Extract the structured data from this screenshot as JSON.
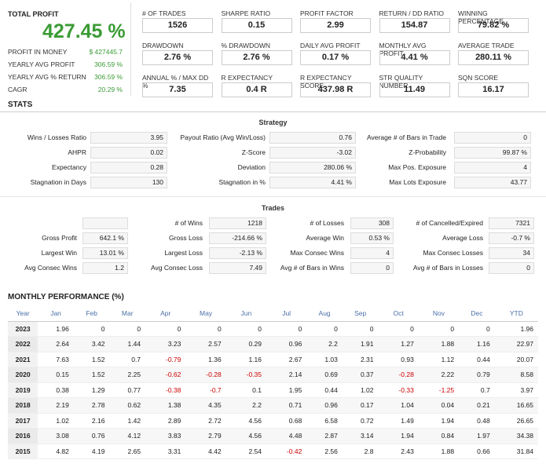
{
  "summary": {
    "total_profit_label": "TOTAL PROFIT",
    "total_profit_value": "427.45 %",
    "left_rows": [
      {
        "label": "PROFIT IN MONEY",
        "value": "$ 427445.7"
      },
      {
        "label": "YEARLY AVG PROFIT",
        "value": "306.59 %"
      },
      {
        "label": "YEARLY AVG % RETURN",
        "value": "306.59 %"
      },
      {
        "label": "CAGR",
        "value": "20.29 %"
      }
    ],
    "metrics": [
      {
        "label": "# OF TRADES",
        "value": "1526"
      },
      {
        "label": "SHARPE RATIO",
        "value": "0.15"
      },
      {
        "label": "PROFIT FACTOR",
        "value": "2.99"
      },
      {
        "label": "RETURN / DD RATIO",
        "value": "154.87"
      },
      {
        "label": "WINNING PERCENTAGE",
        "value": "79.82 %"
      },
      {
        "label": "DRAWDOWN",
        "value": "2.76 %"
      },
      {
        "label": "% DRAWDOWN",
        "value": "2.76 %"
      },
      {
        "label": "DAILY AVG PROFIT",
        "value": "0.17 %"
      },
      {
        "label": "MONTHLY AVG PROFIT",
        "value": "4.41 %"
      },
      {
        "label": "AVERAGE TRADE",
        "value": "280.11 %"
      },
      {
        "label": "ANNUAL % / MAX DD %",
        "value": "7.35"
      },
      {
        "label": "R EXPECTANCY",
        "value": "0.4 R"
      },
      {
        "label": "R EXPECTANCY SCORE",
        "value": "437.98 R"
      },
      {
        "label": "STR QUALITY NUMBER",
        "value": "11.49"
      },
      {
        "label": "SQN SCORE",
        "value": "16.17"
      }
    ]
  },
  "stats": {
    "title": "STATS",
    "strategy_title": "Strategy",
    "strategy": [
      [
        {
          "label": "Wins / Losses Ratio",
          "value": "3.95"
        },
        {
          "label": "Payout Ratio (Avg Win/Loss)",
          "value": "0.76"
        },
        {
          "label": "Average # of Bars in Trade",
          "value": "0"
        }
      ],
      [
        {
          "label": "AHPR",
          "value": "0.02"
        },
        {
          "label": "Z-Score",
          "value": "-3.02"
        },
        {
          "label": "Z-Probability",
          "value": "99.87 %"
        }
      ],
      [
        {
          "label": "Expectancy",
          "value": "0.28"
        },
        {
          "label": "Deviation",
          "value": "280.06 %"
        },
        {
          "label": "Max Pos. Exposure",
          "value": "4"
        }
      ],
      [
        {
          "label": "Stagnation in Days",
          "value": "130"
        },
        {
          "label": "Stagnation in %",
          "value": "4.41 %"
        },
        {
          "label": "Max Lots Exposure",
          "value": "43.77"
        }
      ]
    ],
    "trades_title": "Trades",
    "trades": [
      [
        {
          "label": "",
          "value": ""
        },
        {
          "label": "# of Wins",
          "value": "1218"
        },
        {
          "label": "# of Losses",
          "value": "308"
        },
        {
          "label": "# of Cancelled/Expired",
          "value": "7321"
        }
      ],
      [
        {
          "label": "Gross Profit",
          "value": "642.1 %"
        },
        {
          "label": "Gross Loss",
          "value": "-214.66 %"
        },
        {
          "label": "Average Win",
          "value": "0.53 %"
        },
        {
          "label": "Average Loss",
          "value": "-0.7 %"
        }
      ],
      [
        {
          "label": "Largest Win",
          "value": "13.01 %"
        },
        {
          "label": "Largest Loss",
          "value": "-2.13 %"
        },
        {
          "label": "Max Consec Wins",
          "value": "4"
        },
        {
          "label": "Max Consec Losses",
          "value": "34"
        }
      ],
      [
        {
          "label": "Avg Consec Wins",
          "value": "1.2"
        },
        {
          "label": "Avg Consec Loss",
          "value": "7.49"
        },
        {
          "label": "Avg # of Bars in Wins",
          "value": "0"
        },
        {
          "label": "Avg # of Bars in Losses",
          "value": "0"
        }
      ]
    ]
  },
  "monthly": {
    "title": "MONTHLY PERFORMANCE (%)",
    "headers": [
      "Year",
      "Jan",
      "Feb",
      "Mar",
      "Apr",
      "May",
      "Jun",
      "Jul",
      "Aug",
      "Sep",
      "Oct",
      "Nov",
      "Dec",
      "YTD"
    ],
    "rows": [
      [
        "2023",
        "1.96",
        "0",
        "0",
        "0",
        "0",
        "0",
        "0",
        "0",
        "0",
        "0",
        "0",
        "0",
        "1.96"
      ],
      [
        "2022",
        "2.64",
        "3.42",
        "1.44",
        "3.23",
        "2.57",
        "0.29",
        "0.96",
        "2.2",
        "1.91",
        "1.27",
        "1.88",
        "1.16",
        "22.97"
      ],
      [
        "2021",
        "7.63",
        "1.52",
        "0.7",
        "-0.79",
        "1.36",
        "1.16",
        "2.67",
        "1.03",
        "2.31",
        "0.93",
        "1.12",
        "0.44",
        "20.07"
      ],
      [
        "2020",
        "0.15",
        "1.52",
        "2.25",
        "-0.62",
        "-0.28",
        "-0.35",
        "2.14",
        "0.69",
        "0.37",
        "-0.28",
        "2.22",
        "0.79",
        "8.58"
      ],
      [
        "2019",
        "0.38",
        "1.29",
        "0.77",
        "-0.38",
        "-0.7",
        "0.1",
        "1.95",
        "0.44",
        "1.02",
        "-0.33",
        "-1.25",
        "0.7",
        "3.97"
      ],
      [
        "2018",
        "2.19",
        "2.78",
        "0.62",
        "1.38",
        "4.35",
        "2.2",
        "0.71",
        "0.96",
        "0.17",
        "1.04",
        "0.04",
        "0.21",
        "16.65"
      ],
      [
        "2017",
        "1.02",
        "2.16",
        "1.42",
        "2.89",
        "2.72",
        "4.56",
        "0.68",
        "6.58",
        "0.72",
        "1.49",
        "1.94",
        "0.48",
        "26.65"
      ],
      [
        "2016",
        "3.08",
        "0.76",
        "4.12",
        "3.83",
        "2.79",
        "4.56",
        "4.48",
        "2.87",
        "3.14",
        "1.94",
        "0.84",
        "1.97",
        "34.38"
      ],
      [
        "2015",
        "4.82",
        "4.19",
        "2.65",
        "3.31",
        "4.42",
        "2.54",
        "-0.42",
        "2.56",
        "2.8",
        "2.43",
        "1.88",
        "0.66",
        "31.84"
      ]
    ]
  }
}
